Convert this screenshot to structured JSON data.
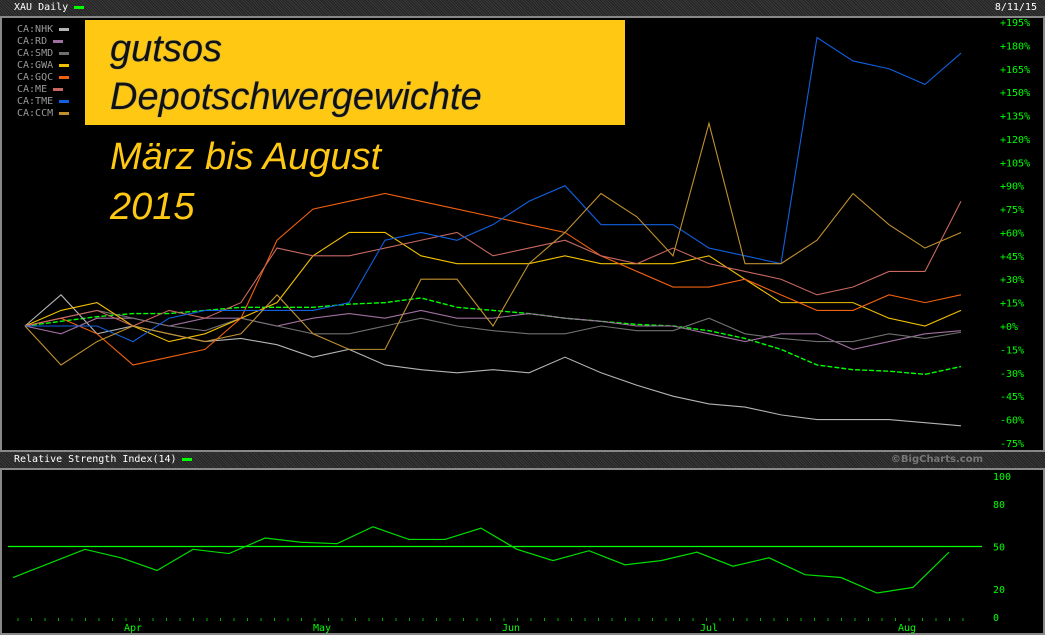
{
  "header": {
    "title": "XAU Daily",
    "date": "8/11/15"
  },
  "rsi_header": {
    "title": "Relative Strength Index(14)",
    "credit": "©BigCharts.com"
  },
  "overlay": {
    "line1": "gutsos",
    "line2": "Depotschwergewichte",
    "line3": "März bis August",
    "line4": "2015"
  },
  "colors": {
    "accent": "#00ff00",
    "banner": "#ffc812"
  },
  "chart_data": [
    {
      "type": "line",
      "title": "XAU Daily",
      "ylabel": "",
      "ylim": [
        -75,
        195
      ],
      "y_ticks": [
        "+195%",
        "+180%",
        "+165%",
        "+150%",
        "+135%",
        "+120%",
        "+105%",
        "+90%",
        "+75%",
        "+60%",
        "+45%",
        "+30%",
        "+15%",
        "+0%",
        "-15%",
        "-30%",
        "-45%",
        "-60%",
        "-75%"
      ],
      "x_ticks": [
        {
          "label": "Apr",
          "x": 12
        },
        {
          "label": "May",
          "x": 33
        },
        {
          "label": "Jun",
          "x": 54
        },
        {
          "label": "Jul",
          "x": 76
        },
        {
          "label": "Aug",
          "x": 98
        }
      ],
      "x": [
        0,
        4,
        8,
        12,
        16,
        20,
        24,
        28,
        32,
        36,
        40,
        44,
        48,
        52,
        56,
        60,
        64,
        68,
        72,
        76,
        80,
        84,
        88,
        92,
        96,
        100,
        104
      ],
      "legend_position": "top-left",
      "series": [
        {
          "name": "XAU",
          "color": "#00ff00",
          "values": [
            0,
            3,
            6,
            8,
            8,
            10,
            12,
            12,
            12,
            14,
            15,
            18,
            12,
            10,
            8,
            5,
            3,
            1,
            0,
            -3,
            -8,
            -15,
            -25,
            -28,
            -29,
            -31,
            -26
          ]
        },
        {
          "name": "CA:NHK",
          "color": "#b4b4b4",
          "values": [
            0,
            20,
            -5,
            0,
            -5,
            -10,
            -8,
            -12,
            -20,
            -15,
            -25,
            -28,
            -30,
            -28,
            -30,
            -20,
            -30,
            -38,
            -45,
            -50,
            -52,
            -57,
            -60,
            -60,
            -60,
            -62,
            -64
          ]
        },
        {
          "name": "CA:RD",
          "color": "#a070a0",
          "values": [
            0,
            -5,
            5,
            5,
            0,
            5,
            5,
            0,
            5,
            8,
            5,
            10,
            5,
            5,
            8,
            5,
            3,
            0,
            0,
            -5,
            -10,
            -5,
            -5,
            -15,
            -10,
            -5,
            -3
          ]
        },
        {
          "name": "CA:SMD",
          "color": "#707070",
          "values": [
            0,
            5,
            10,
            5,
            0,
            -3,
            5,
            0,
            -5,
            -5,
            0,
            5,
            0,
            -3,
            -5,
            -5,
            0,
            -3,
            -3,
            5,
            -5,
            -8,
            -10,
            -10,
            -5,
            -8,
            -4
          ]
        },
        {
          "name": "CA:GWA",
          "color": "#f0c000",
          "values": [
            0,
            10,
            15,
            0,
            -10,
            -5,
            5,
            15,
            45,
            60,
            60,
            45,
            40,
            40,
            40,
            45,
            40,
            40,
            40,
            45,
            30,
            15,
            15,
            15,
            5,
            0,
            10
          ]
        },
        {
          "name": "CA:GQC",
          "color": "#f06010",
          "values": [
            0,
            5,
            -5,
            -25,
            -20,
            -15,
            5,
            55,
            75,
            80,
            85,
            80,
            75,
            70,
            65,
            60,
            45,
            35,
            25,
            25,
            30,
            20,
            10,
            10,
            20,
            15,
            20
          ]
        },
        {
          "name": "CA:ME",
          "color": "#c86860",
          "values": [
            0,
            5,
            10,
            0,
            10,
            5,
            15,
            50,
            45,
            45,
            50,
            55,
            60,
            45,
            50,
            55,
            45,
            40,
            50,
            40,
            35,
            30,
            20,
            25,
            35,
            35,
            80
          ]
        },
        {
          "name": "CA:TME",
          "color": "#1060e0",
          "values": [
            0,
            0,
            0,
            -10,
            5,
            10,
            10,
            10,
            10,
            15,
            55,
            60,
            55,
            65,
            80,
            90,
            65,
            65,
            65,
            50,
            45,
            40,
            185,
            170,
            165,
            155,
            175
          ]
        },
        {
          "name": "CA:CCM",
          "color": "#c09030",
          "values": [
            0,
            -25,
            -10,
            0,
            -5,
            -10,
            -5,
            20,
            -5,
            -15,
            -15,
            30,
            30,
            0,
            40,
            60,
            85,
            70,
            45,
            130,
            40,
            40,
            55,
            85,
            65,
            50,
            60
          ]
        }
      ]
    },
    {
      "type": "line",
      "title": "Relative Strength Index(14)",
      "ylim": [
        0,
        100
      ],
      "y_ticks": [
        "100",
        "80",
        "50",
        "20",
        "0"
      ],
      "reference_line": 50,
      "x": [
        0,
        4,
        8,
        12,
        16,
        20,
        24,
        28,
        32,
        36,
        40,
        44,
        48,
        52,
        56,
        60,
        64,
        68,
        72,
        76,
        80,
        84,
        88,
        92,
        96,
        100,
        104
      ],
      "series": [
        {
          "name": "RSI(14)",
          "color": "#00ff00",
          "values": [
            28,
            38,
            48,
            42,
            33,
            48,
            45,
            56,
            53,
            52,
            64,
            55,
            55,
            63,
            48,
            40,
            47,
            37,
            40,
            46,
            36,
            42,
            30,
            28,
            17,
            21,
            46
          ]
        }
      ]
    }
  ]
}
